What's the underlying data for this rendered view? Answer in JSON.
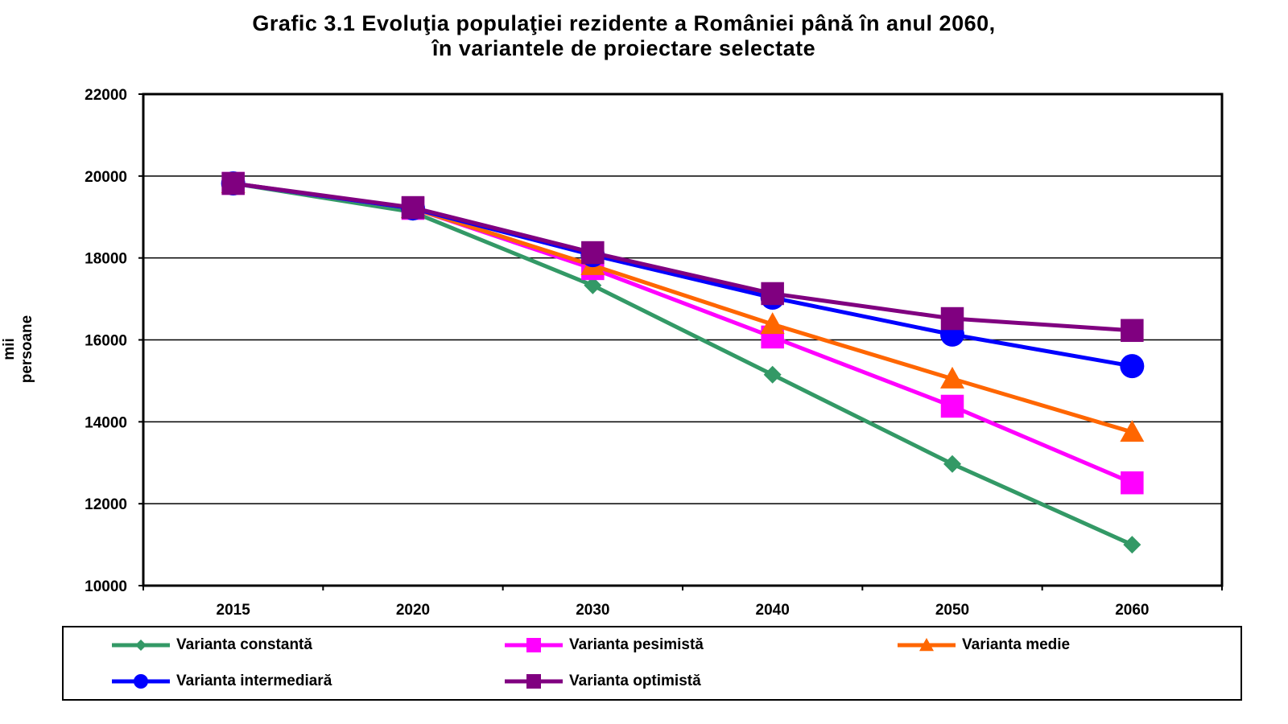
{
  "chart_data": {
    "type": "line",
    "title": "Grafic 3.1 Evoluţia populaţiei rezidente a României până în anul 2060,",
    "subtitle": "în variantele de proiectare selectate",
    "xlabel": "",
    "ylabel": "mii persoane",
    "categories": [
      "2015",
      "2020",
      "2030",
      "2040",
      "2050",
      "2060"
    ],
    "ylim": [
      10000,
      22000
    ],
    "yticks": [
      "10000",
      "12000",
      "14000",
      "16000",
      "18000",
      "20000",
      "22000"
    ],
    "grid": true,
    "legend_position": "bottom",
    "series": [
      {
        "name": "Varianta constantă",
        "color": "#339966",
        "marker": "diamond",
        "values": [
          19820,
          19120,
          17330,
          15150,
          12970,
          11000
        ]
      },
      {
        "name": "Varianta pesimistă",
        "color": "#ff00ff",
        "marker": "square",
        "values": [
          19820,
          19210,
          17740,
          16070,
          14380,
          12510
        ]
      },
      {
        "name": "Varianta medie",
        "color": "#ff6600",
        "marker": "triangle",
        "values": [
          19820,
          19210,
          17820,
          16380,
          15050,
          13750
        ]
      },
      {
        "name": "Varianta intermediară",
        "color": "#0000ff",
        "marker": "circle",
        "values": [
          19820,
          19210,
          18070,
          17030,
          16130,
          15360
        ]
      },
      {
        "name": "Varianta optimistă",
        "color": "#800080",
        "marker": "square",
        "values": [
          19820,
          19230,
          18130,
          17130,
          16520,
          16230
        ]
      }
    ]
  }
}
